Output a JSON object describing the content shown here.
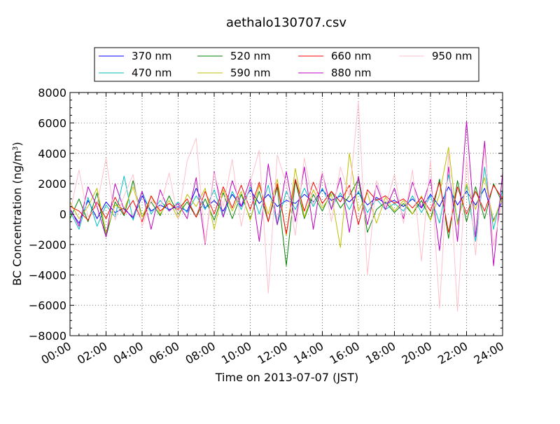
{
  "chart_data": {
    "type": "line",
    "title": "aethalo130707.csv",
    "xlabel": "Time on 2013-07-07 (JST)",
    "ylabel": "BC Concentration (ng/m3)",
    "ylabel_parts": {
      "main": "BC Concentration (ng/m",
      "sup": "3",
      "close": ")"
    },
    "xlim": [
      "00:00",
      "24:00"
    ],
    "ylim": [
      -8000,
      8000
    ],
    "x_ticks": [
      "00:00",
      "02:00",
      "04:00",
      "06:00",
      "08:00",
      "10:00",
      "12:00",
      "14:00",
      "16:00",
      "18:00",
      "20:00",
      "22:00",
      "24:00"
    ],
    "y_ticks": [
      "8000",
      "6000",
      "4000",
      "2000",
      "0",
      "−2000",
      "−4000",
      "−6000",
      "−8000"
    ],
    "y_tick_values": [
      8000,
      6000,
      4000,
      2000,
      0,
      -2000,
      -4000,
      -6000,
      -8000
    ],
    "grid": true,
    "legend_position": "top",
    "x": [
      "00:00",
      "00:30",
      "01:00",
      "01:30",
      "02:00",
      "02:30",
      "03:00",
      "03:30",
      "04:00",
      "04:30",
      "05:00",
      "05:30",
      "06:00",
      "06:30",
      "07:00",
      "07:30",
      "08:00",
      "08:30",
      "09:00",
      "09:30",
      "10:00",
      "10:30",
      "11:00",
      "11:30",
      "12:00",
      "12:30",
      "13:00",
      "13:30",
      "14:00",
      "14:30",
      "15:00",
      "15:30",
      "16:00",
      "16:30",
      "17:00",
      "17:30",
      "18:00",
      "18:30",
      "19:00",
      "19:30",
      "20:00",
      "20:30",
      "21:00",
      "21:30",
      "22:00",
      "22:30",
      "23:00",
      "23:30",
      "24:00"
    ],
    "series": [
      {
        "name": "370 nm",
        "color": "#0000ff",
        "values": [
          300,
          -600,
          900,
          -300,
          800,
          100,
          400,
          -300,
          1200,
          200,
          600,
          300,
          500,
          200,
          1700,
          400,
          900,
          200,
          1300,
          500,
          1600,
          700,
          1300,
          500,
          900,
          700,
          1300,
          800,
          1600,
          900,
          1200,
          800,
          1400,
          600,
          1100,
          700,
          900,
          500,
          1000,
          400,
          1300,
          500,
          1800,
          600,
          1500,
          600,
          1700,
          -400,
          900
        ]
      },
      {
        "name": "470 nm",
        "color": "#00bfbf",
        "values": [
          200,
          -1000,
          1100,
          -800,
          600,
          -200,
          2500,
          -400,
          1500,
          0,
          900,
          200,
          800,
          100,
          1200,
          300,
          1600,
          -200,
          1500,
          300,
          1800,
          0,
          1900,
          -700,
          1500,
          300,
          1700,
          500,
          1700,
          400,
          1400,
          300,
          1500,
          100,
          1000,
          300,
          700,
          200,
          1200,
          100,
          1200,
          -600,
          2600,
          -500,
          1900,
          -1800,
          3100,
          -1000,
          1600
        ]
      },
      {
        "name": "520 nm",
        "color": "#008000",
        "values": [
          -300,
          1000,
          -500,
          1400,
          -1500,
          800,
          -100,
          2200,
          -200,
          800,
          -100,
          1200,
          0,
          800,
          -200,
          1000,
          -400,
          1400,
          -300,
          1300,
          -300,
          1500,
          -500,
          1800,
          -3400,
          2200,
          -300,
          1300,
          200,
          1500,
          400,
          1200,
          2300,
          -1200,
          300,
          800,
          100,
          700,
          0,
          900,
          -400,
          2300,
          -1600,
          2200,
          -500,
          1800,
          -300,
          2000,
          700
        ]
      },
      {
        "name": "590 nm",
        "color": "#bfbf00",
        "values": [
          800,
          -300,
          500,
          1700,
          -1200,
          600,
          300,
          1800,
          -200,
          1200,
          0,
          900,
          -300,
          1300,
          500,
          1700,
          -1000,
          1600,
          200,
          1500,
          -400,
          1900,
          0,
          2300,
          -1400,
          3000,
          -200,
          1600,
          400,
          1300,
          -2200,
          4000,
          200,
          1400,
          -600,
          1100,
          200,
          900,
          0,
          1200,
          -400,
          1300,
          4400,
          -700,
          2000,
          300,
          2400,
          -500,
          1200
        ]
      },
      {
        "name": "660 nm",
        "color": "#ff0000",
        "values": [
          500,
          200,
          -400,
          800,
          -300,
          1100,
          0,
          900,
          -500,
          1200,
          200,
          700,
          300,
          1000,
          -200,
          1500,
          0,
          1800,
          400,
          1900,
          300,
          2100,
          -500,
          2000,
          -1300,
          2300,
          200,
          2100,
          700,
          1500,
          800,
          1900,
          -700,
          1600,
          900,
          1200,
          700,
          1000,
          400,
          1100,
          200,
          2100,
          -1200,
          1800,
          0,
          1500,
          200,
          1900,
          1000
        ]
      },
      {
        "name": "880 nm",
        "color": "#bf00bf",
        "values": [
          400,
          -800,
          1800,
          500,
          -1500,
          2000,
          300,
          -200,
          1500,
          -1000,
          1600,
          200,
          700,
          -300,
          2400,
          -2000,
          2800,
          -200,
          2200,
          500,
          2300,
          -1800,
          3300,
          -700,
          2800,
          -500,
          3100,
          -1000,
          2700,
          300,
          2400,
          -1200,
          2500,
          -700,
          1900,
          300,
          1700,
          -300,
          2100,
          400,
          2300,
          -2400,
          3100,
          -1800,
          6100,
          -1500,
          4800,
          -3400,
          2700
        ]
      },
      {
        "name": "950 nm",
        "color": "#ffc0cb",
        "values": [
          100,
          2900,
          -200,
          600,
          3700,
          -400,
          1200,
          2600,
          -800,
          900,
          400,
          2700,
          -300,
          3500,
          5000,
          -1900,
          2700,
          500,
          3600,
          -800,
          2100,
          4200,
          -5200,
          3900,
          2000,
          -1400,
          3700,
          600,
          2800,
          -500,
          3100,
          1200,
          7400,
          -4000,
          2200,
          500,
          2600,
          -600,
          2900,
          -3100,
          3600,
          -6200,
          4100,
          -6400,
          3700,
          -2700,
          4300,
          -2100,
          1000
        ]
      }
    ]
  }
}
